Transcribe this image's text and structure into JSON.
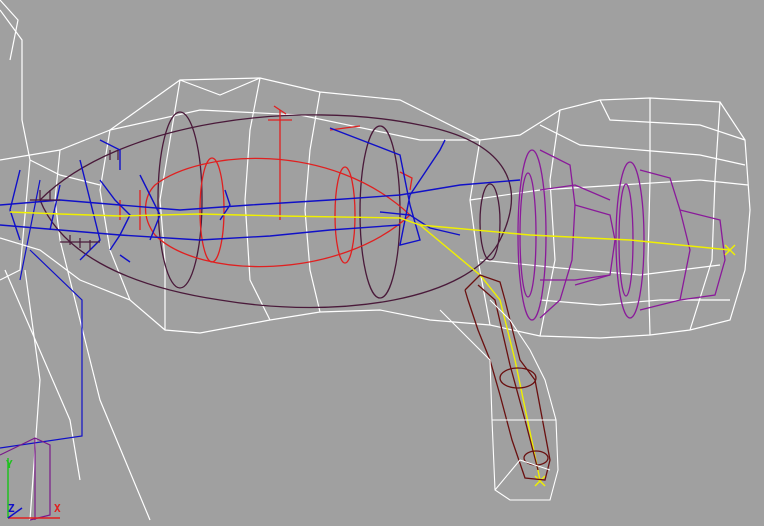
{
  "viewport": {
    "background": "#a0a0a0",
    "colors": {
      "mesh_white": "#ffffff",
      "bone_blue": "#1010c8",
      "control_red": "#e02020",
      "joint_purple": "#8a1a9a",
      "hull_dark": "#4a1a3a",
      "leg_brown": "#6a1010",
      "bone_yellow": "#f0f000"
    }
  },
  "axis_tripod": {
    "x_label": "X",
    "y_label": "Y",
    "z_label": "Z"
  }
}
